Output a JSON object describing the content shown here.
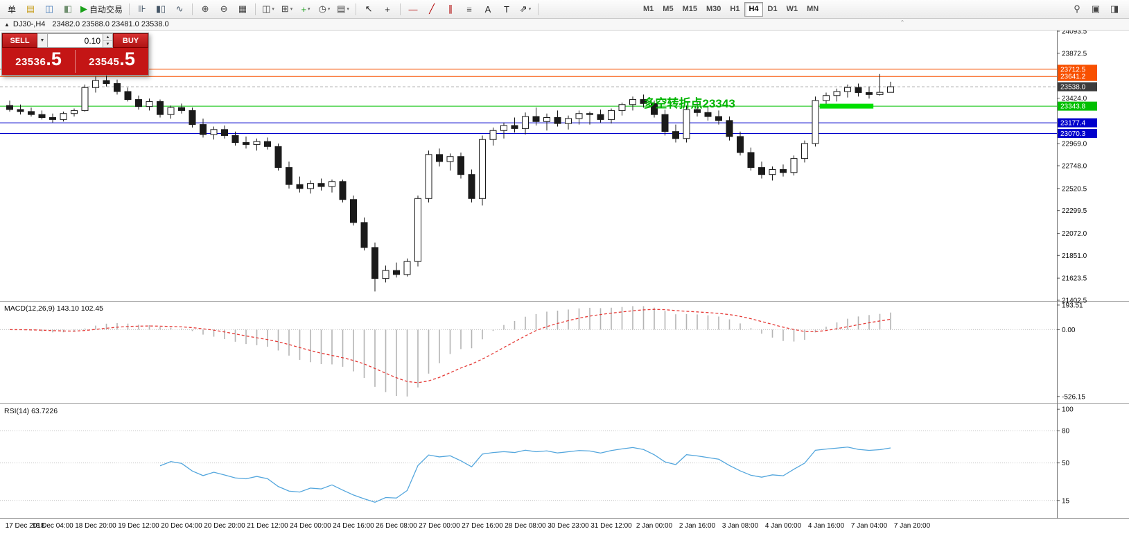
{
  "toolbar": {
    "items": [
      {
        "type": "button",
        "name": "order-menu-button",
        "label": "单"
      },
      {
        "type": "icon",
        "name": "new-order-icon",
        "glyph": "▤",
        "color": "#c9a227"
      },
      {
        "type": "icon",
        "name": "chart-window-icon",
        "glyph": "◫",
        "color": "#4a7ebb"
      },
      {
        "type": "icon",
        "name": "market-watch-icon",
        "glyph": "◧",
        "color": "#6f8f6f"
      },
      {
        "type": "icon-label",
        "name": "autotrading-button",
        "glyph": "▶",
        "color": "#18a018",
        "label": "自动交易"
      },
      {
        "type": "sep"
      },
      {
        "type": "icon",
        "name": "bar-chart-icon",
        "glyph": "⊪",
        "color": "#445566"
      },
      {
        "type": "icon",
        "name": "candlestick-icon",
        "glyph": "▮▯",
        "color": "#445566"
      },
      {
        "type": "icon",
        "name": "line-chart-icon",
        "glyph": "∿",
        "color": "#445566"
      },
      {
        "type": "sep"
      },
      {
        "type": "icon",
        "name": "zoom-in-icon",
        "glyph": "⊕",
        "color": "#444444"
      },
      {
        "type": "icon",
        "name": "zoom-out-icon",
        "glyph": "⊖",
        "color": "#444444"
      },
      {
        "type": "icon",
        "name": "tile-windows-icon",
        "glyph": "▦",
        "color": "#444444"
      },
      {
        "type": "sep"
      },
      {
        "type": "icon-drop",
        "name": "arrange-windows-icon",
        "glyph": "◫",
        "color": "#444444"
      },
      {
        "type": "icon-drop",
        "name": "cascade-windows-icon",
        "glyph": "⊞",
        "color": "#444444"
      },
      {
        "type": "icon-drop",
        "name": "add-indicator-icon",
        "glyph": "+",
        "color": "#18a018"
      },
      {
        "type": "icon-drop",
        "name": "periods-icon",
        "glyph": "◷",
        "color": "#444444"
      },
      {
        "type": "icon-drop",
        "name": "templates-icon",
        "glyph": "▤",
        "color": "#444444"
      },
      {
        "type": "sep"
      },
      {
        "type": "icon",
        "name": "cursor-icon",
        "glyph": "↖",
        "color": "#222222"
      },
      {
        "type": "icon",
        "name": "crosshair-icon",
        "glyph": "+",
        "color": "#222222"
      },
      {
        "type": "sep"
      },
      {
        "type": "icon",
        "name": "hline-tool-icon",
        "glyph": "—",
        "color": "#b00000"
      },
      {
        "type": "icon",
        "name": "trendline-tool-icon",
        "glyph": "╱",
        "color": "#b00000"
      },
      {
        "type": "icon",
        "name": "channel-tool-icon",
        "glyph": "∥",
        "color": "#b00000"
      },
      {
        "type": "icon",
        "name": "fibonacci-tool-icon",
        "glyph": "≡",
        "color": "#555555"
      },
      {
        "type": "icon",
        "name": "text-tool-icon",
        "glyph": "A",
        "color": "#222222"
      },
      {
        "type": "icon",
        "name": "label-tool-icon",
        "glyph": "T",
        "color": "#222222"
      },
      {
        "type": "icon-drop",
        "name": "shapes-tool-icon",
        "glyph": "⇗",
        "color": "#222222"
      },
      {
        "type": "sep"
      }
    ],
    "timeframes": [
      "M1",
      "M5",
      "M15",
      "M30",
      "H1",
      "H4",
      "D1",
      "W1",
      "MN"
    ],
    "active_timeframe": "H4",
    "right_items": [
      {
        "type": "icon",
        "name": "search-icon",
        "glyph": "⚲",
        "color": "#444444"
      },
      {
        "type": "icon",
        "name": "new-chart-icon",
        "glyph": "▣",
        "color": "#444444"
      },
      {
        "type": "icon",
        "name": "profile-icon",
        "glyph": "◨",
        "color": "#444444"
      }
    ]
  },
  "chart_header": {
    "collapse_glyph": "▲",
    "title": "DJ30-,H4",
    "ohlc": "23482.0 23588.0 23481.0 23538.0",
    "scroll_glyph": "ˆ"
  },
  "trade_panel": {
    "sell_label": "SELL",
    "buy_label": "BUY",
    "volume": "0.10",
    "sell_price": "23536",
    "sell_price_big": ".5",
    "buy_price": "23545",
    "buy_price_big": ".5",
    "panel_color": "#c41515"
  },
  "chart_data": {
    "type": "candlestick",
    "symbol": "DJ30-",
    "period": "H4",
    "price_axis": {
      "min": 21402.5,
      "max": 24093.5,
      "ticks": [
        "24093.5",
        "23872.5",
        "23424.0",
        "22969.0",
        "22748.0",
        "22520.5",
        "22299.5",
        "22072.0",
        "21851.0",
        "21623.5",
        "21402.5"
      ]
    },
    "price_labels": [
      {
        "text": "23712.5",
        "value": 23712.5,
        "bg": "#f85000",
        "line": "#f85000",
        "style": "solid"
      },
      {
        "text": "23641.2",
        "value": 23641.2,
        "bg": "#f85000",
        "line": "#f85000",
        "style": "solid"
      },
      {
        "text": "23538.0",
        "value": 23538.0,
        "bg": "#3c3c3c",
        "line": "#aaaaaa",
        "style": "dash"
      },
      {
        "text": "23343.8",
        "value": 23343.8,
        "bg": "#00c000",
        "line": "#00c000",
        "style": "solid"
      },
      {
        "text": "23177.4",
        "value": 23177.4,
        "bg": "#0000cc",
        "line": "#0000cc",
        "style": "solid"
      },
      {
        "text": "23070.3",
        "value": 23070.3,
        "bg": "#0000cc",
        "line": "#0000cc",
        "style": "solid"
      }
    ],
    "annotation": {
      "text": "多空转折点23343",
      "color": "#00b400",
      "at_bar": 59,
      "price": 23343.8
    },
    "highlight": {
      "price": 23343.8,
      "from_bar": 75.4,
      "to_bar": 80.4,
      "color": "#00e000"
    },
    "candles": [
      [
        23350,
        23400,
        23290,
        23310
      ],
      [
        23310,
        23360,
        23260,
        23290
      ],
      [
        23290,
        23330,
        23240,
        23260
      ],
      [
        23260,
        23300,
        23210,
        23230
      ],
      [
        23230,
        23270,
        23180,
        23210
      ],
      [
        23210,
        23290,
        23190,
        23270
      ],
      [
        23270,
        23320,
        23240,
        23300
      ],
      [
        23300,
        23560,
        23290,
        23530
      ],
      [
        23530,
        23640,
        23480,
        23600
      ],
      [
        23600,
        23660,
        23540,
        23570
      ],
      [
        23570,
        23610,
        23460,
        23490
      ],
      [
        23490,
        23530,
        23390,
        23410
      ],
      [
        23410,
        23450,
        23310,
        23340
      ],
      [
        23340,
        23420,
        23300,
        23390
      ],
      [
        23390,
        23410,
        23230,
        23260
      ],
      [
        23260,
        23350,
        23220,
        23330
      ],
      [
        23330,
        23370,
        23270,
        23300
      ],
      [
        23300,
        23330,
        23130,
        23160
      ],
      [
        23160,
        23220,
        23030,
        23060
      ],
      [
        23060,
        23140,
        23010,
        23110
      ],
      [
        23110,
        23150,
        23020,
        23050
      ],
      [
        23050,
        23090,
        22950,
        22980
      ],
      [
        22980,
        23040,
        22920,
        22960
      ],
      [
        22960,
        23020,
        22900,
        22990
      ],
      [
        22990,
        23030,
        22910,
        22940
      ],
      [
        22940,
        22970,
        22700,
        22730
      ],
      [
        22730,
        22790,
        22520,
        22560
      ],
      [
        22560,
        22640,
        22480,
        22520
      ],
      [
        22520,
        22600,
        22470,
        22570
      ],
      [
        22570,
        22620,
        22500,
        22540
      ],
      [
        22540,
        22610,
        22480,
        22590
      ],
      [
        22590,
        22610,
        22380,
        22410
      ],
      [
        22410,
        22450,
        22150,
        22180
      ],
      [
        22180,
        22230,
        21900,
        21930
      ],
      [
        21930,
        21980,
        21490,
        21620
      ],
      [
        21620,
        21750,
        21580,
        21700
      ],
      [
        21700,
        21780,
        21630,
        21660
      ],
      [
        21660,
        21820,
        21640,
        21790
      ],
      [
        21790,
        22450,
        21740,
        22420
      ],
      [
        22420,
        22900,
        22380,
        22860
      ],
      [
        22860,
        22920,
        22740,
        22790
      ],
      [
        22790,
        22870,
        22700,
        22840
      ],
      [
        22840,
        22880,
        22620,
        22660
      ],
      [
        22660,
        22710,
        22380,
        22420
      ],
      [
        22420,
        23050,
        22350,
        23010
      ],
      [
        23010,
        23130,
        22950,
        23100
      ],
      [
        23100,
        23180,
        23020,
        23150
      ],
      [
        23150,
        23230,
        23080,
        23120
      ],
      [
        23120,
        23280,
        23060,
        23240
      ],
      [
        23240,
        23330,
        23150,
        23190
      ],
      [
        23190,
        23270,
        23100,
        23230
      ],
      [
        23230,
        23300,
        23140,
        23170
      ],
      [
        23170,
        23250,
        23110,
        23220
      ],
      [
        23220,
        23300,
        23160,
        23270
      ],
      [
        23270,
        23290,
        23160,
        23260
      ],
      [
        23260,
        23310,
        23180,
        23210
      ],
      [
        23210,
        23320,
        23170,
        23300
      ],
      [
        23300,
        23380,
        23250,
        23360
      ],
      [
        23360,
        23440,
        23300,
        23410
      ],
      [
        23410,
        23460,
        23330,
        23370
      ],
      [
        23370,
        23400,
        23230,
        23260
      ],
      [
        23260,
        23310,
        23050,
        23090
      ],
      [
        23090,
        23160,
        22980,
        23020
      ],
      [
        23020,
        23350,
        22980,
        23310
      ],
      [
        23310,
        23390,
        23240,
        23280
      ],
      [
        23280,
        23340,
        23200,
        23240
      ],
      [
        23240,
        23300,
        23160,
        23200
      ],
      [
        23200,
        23240,
        23000,
        23040
      ],
      [
        23040,
        23090,
        22850,
        22880
      ],
      [
        22880,
        22930,
        22700,
        22730
      ],
      [
        22730,
        22790,
        22620,
        22660
      ],
      [
        22660,
        22740,
        22600,
        22710
      ],
      [
        22710,
        22760,
        22640,
        22680
      ],
      [
        22680,
        22850,
        22650,
        22820
      ],
      [
        22820,
        23000,
        22780,
        22970
      ],
      [
        22970,
        23440,
        22940,
        23400
      ],
      [
        23400,
        23480,
        23340,
        23450
      ],
      [
        23450,
        23520,
        23390,
        23490
      ],
      [
        23490,
        23560,
        23430,
        23530
      ],
      [
        23530,
        23570,
        23440,
        23480
      ],
      [
        23480,
        23540,
        23420,
        23460
      ],
      [
        23460,
        23665,
        23450,
        23482
      ],
      [
        23482,
        23588,
        23481,
        23538
      ]
    ],
    "time_labels": [
      "17 Dec 2018",
      "18 Dec 04:00",
      "18 Dec 20:00",
      "19 Dec 12:00",
      "20 Dec 04:00",
      "20 Dec 20:00",
      "21 Dec 12:00",
      "24 Dec 00:00",
      "24 Dec 16:00",
      "26 Dec 08:00",
      "27 Dec 00:00",
      "27 Dec 16:00",
      "28 Dec 08:00",
      "30 Dec 23:00",
      "31 Dec 12:00",
      "2 Jan 00:00",
      "2 Jan 16:00",
      "3 Jan 08:00",
      "4 Jan 00:00",
      "4 Jan 16:00",
      "7 Jan 04:00",
      "7 Jan 20:00"
    ],
    "macd": {
      "label": "MACD(12,26,9) 143.10 102.45",
      "ticks": [
        {
          "text": "193.51",
          "value": 193.51
        },
        {
          "text": "0.00",
          "value": 0
        },
        {
          "text": "-526.15",
          "value": -526.15
        }
      ],
      "histogram_color": "#b4b4b4",
      "signal_color": "#e53935"
    },
    "rsi": {
      "label": "RSI(14) 63.7226",
      "period": 14,
      "levels": [
        {
          "text": "100",
          "value": 100
        },
        {
          "text": "80",
          "value": 80
        },
        {
          "text": "50",
          "value": 50
        },
        {
          "text": "15",
          "value": 15
        }
      ],
      "line_color": "#53a6dd"
    }
  }
}
